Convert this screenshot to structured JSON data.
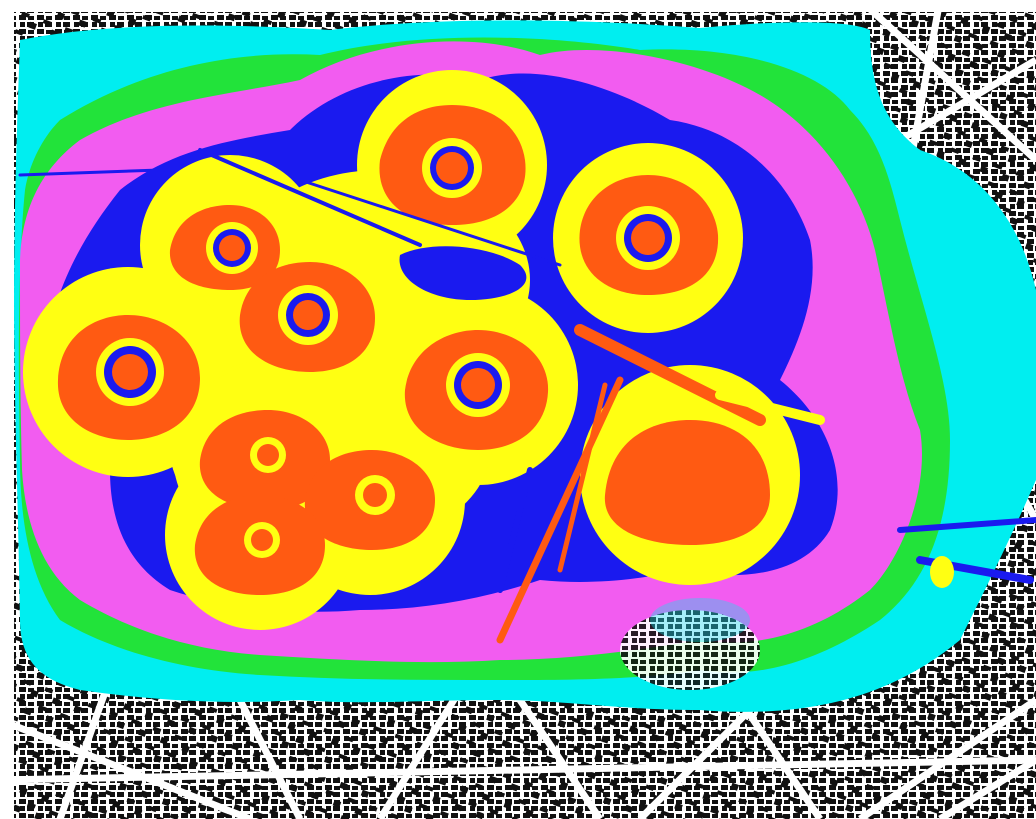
{
  "map": {
    "colors": {
      "background": "#ffffff",
      "urban_fabric": "#111111",
      "streets": "#ffffff",
      "zone_outer": "#00eef0",
      "zone_green": "#22e33a",
      "zone_magenta": "#f25cf0",
      "zone_blue": "#1a1aef",
      "zone_yellow": "#ffff12",
      "zone_orange": "#ff5a12"
    },
    "zones": [
      {
        "name": "cyan",
        "color": "#00eef0"
      },
      {
        "name": "green",
        "color": "#22e33a"
      },
      {
        "name": "magenta",
        "color": "#f25cf0"
      },
      {
        "name": "blue",
        "color": "#1a1aef"
      },
      {
        "name": "yellow",
        "color": "#ffff12"
      },
      {
        "name": "orange",
        "color": "#ff5a12"
      }
    ],
    "source_count": 9
  }
}
